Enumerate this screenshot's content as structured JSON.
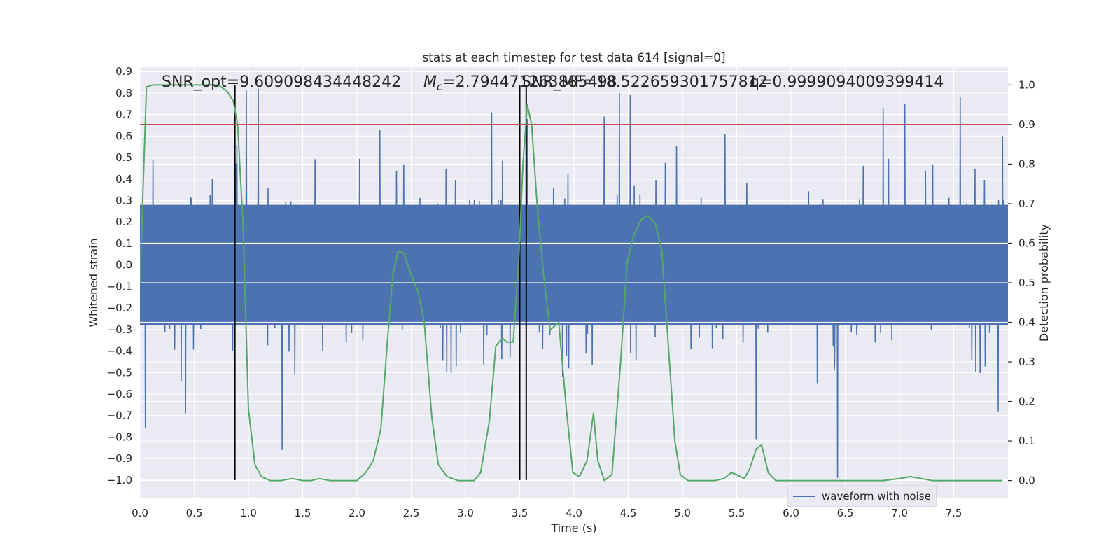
{
  "chart_data": {
    "type": "line",
    "title": "stats at each timestep for test data 614 [signal=0]",
    "xlabel": "Time (s)",
    "ylabel_left": "Whitened strain",
    "ylabel_right": "Detection probability",
    "xlim": [
      0,
      8
    ],
    "ylim_left": [
      -1.085,
      0.92
    ],
    "ylim_right": [
      -0.045,
      1.045
    ],
    "x_ticks": [
      0.0,
      0.5,
      1.0,
      1.5,
      2.0,
      2.5,
      3.0,
      3.5,
      4.0,
      4.5,
      5.0,
      5.5,
      6.0,
      6.5,
      7.0,
      7.5
    ],
    "x_tick_labels": [
      "0.0",
      "0.5",
      "1.0",
      "1.5",
      "2.0",
      "2.5",
      "3.0",
      "3.5",
      "4.0",
      "4.5",
      "5.0",
      "5.5",
      "6.0",
      "6.5",
      "7.0",
      "7.5"
    ],
    "y_left_ticks": [
      0.9,
      0.8,
      0.7,
      0.6,
      0.5,
      0.4,
      0.3,
      0.2,
      0.1,
      0.0,
      -0.1,
      -0.2,
      -0.3,
      -0.4,
      -0.5,
      -0.6,
      -0.7,
      -0.8,
      -0.9,
      -1.0
    ],
    "y_left_tick_labels": [
      "0.9",
      "0.8",
      "0.7",
      "0.6",
      "0.5",
      "0.4",
      "0.3",
      "0.2",
      "0.1",
      "0.0",
      "−0.1",
      "−0.2",
      "−0.3",
      "−0.4",
      "−0.5",
      "−0.6",
      "−0.7",
      "−0.8",
      "−0.9",
      "−1.0"
    ],
    "y_right_ticks": [
      1.0,
      0.9,
      0.8,
      0.7,
      0.6,
      0.5,
      0.4,
      0.3,
      0.2,
      0.1,
      0.0
    ],
    "y_right_tick_labels": [
      "1.0",
      "0.9",
      "0.8",
      "0.7",
      "0.6",
      "0.5",
      "0.4",
      "0.3",
      "0.2",
      "0.1",
      "0.0"
    ],
    "grid": true,
    "legend": {
      "placement": "lower-right",
      "entries": [
        "waveform with noise"
      ]
    },
    "annotations": {
      "snr_opt": "SNR_opt=9.609098434448242",
      "mc_symbol": "M",
      "mc_subscript": "c",
      "mc_value": "=2.794471263885498",
      "snr_mf": "SNR_MF=18.522659301757812",
      "q": "q=0.9999094009399414"
    },
    "colors": {
      "waveform": "#4c72b0",
      "probability": "#55a868",
      "threshold": "#c44e52",
      "markers": "#000000",
      "axes_bg": "#eaeaf2"
    },
    "series": [
      {
        "name": "waveform with noise",
        "axis": "left",
        "kind": "dense_noise",
        "core_band": [
          -0.28,
          0.28
        ],
        "peak_spikes": [
          {
            "x": 0.05,
            "y": -0.76
          },
          {
            "x": 0.12,
            "y": 0.49
          },
          {
            "x": 0.42,
            "y": -0.69
          },
          {
            "x": 0.87,
            "y": -0.69
          },
          {
            "x": 0.98,
            "y": 0.81
          },
          {
            "x": 1.09,
            "y": 0.82
          },
          {
            "x": 1.31,
            "y": -0.86
          },
          {
            "x": 2.21,
            "y": 0.63
          },
          {
            "x": 3.24,
            "y": 0.71
          },
          {
            "x": 3.57,
            "y": 0.68
          },
          {
            "x": 4.28,
            "y": 0.69
          },
          {
            "x": 4.42,
            "y": 0.8
          },
          {
            "x": 4.52,
            "y": 0.79
          },
          {
            "x": 5.68,
            "y": -0.81
          },
          {
            "x": 6.43,
            "y": -0.99
          },
          {
            "x": 6.85,
            "y": 0.73
          },
          {
            "x": 7.05,
            "y": 0.75
          },
          {
            "x": 7.56,
            "y": 0.78
          },
          {
            "x": 7.91,
            "y": -0.68
          },
          {
            "x": 7.95,
            "y": 0.6
          }
        ]
      },
      {
        "name": "",
        "axis": "right",
        "kind": "line",
        "points": [
          [
            0.0,
            0.5
          ],
          [
            0.06,
            0.995
          ],
          [
            0.12,
            1.0
          ],
          [
            0.5,
            1.0
          ],
          [
            0.72,
            1.0
          ],
          [
            0.8,
            0.985
          ],
          [
            0.86,
            0.96
          ],
          [
            0.9,
            0.9
          ],
          [
            0.95,
            0.65
          ],
          [
            1.0,
            0.18
          ],
          [
            1.06,
            0.04
          ],
          [
            1.12,
            0.01
          ],
          [
            1.2,
            0.0
          ],
          [
            1.3,
            0.0
          ],
          [
            1.4,
            0.005
          ],
          [
            1.5,
            0.0
          ],
          [
            1.58,
            0.0
          ],
          [
            1.65,
            0.005
          ],
          [
            1.75,
            0.0
          ],
          [
            1.9,
            0.0
          ],
          [
            2.0,
            0.0
          ],
          [
            2.08,
            0.02
          ],
          [
            2.15,
            0.05
          ],
          [
            2.22,
            0.13
          ],
          [
            2.28,
            0.35
          ],
          [
            2.33,
            0.52
          ],
          [
            2.38,
            0.58
          ],
          [
            2.43,
            0.575
          ],
          [
            2.5,
            0.52
          ],
          [
            2.56,
            0.48
          ],
          [
            2.62,
            0.4
          ],
          [
            2.69,
            0.16
          ],
          [
            2.75,
            0.04
          ],
          [
            2.83,
            0.01
          ],
          [
            2.93,
            0.0
          ],
          [
            3.0,
            0.0
          ],
          [
            3.08,
            0.0
          ],
          [
            3.14,
            0.02
          ],
          [
            3.22,
            0.15
          ],
          [
            3.28,
            0.34
          ],
          [
            3.34,
            0.36
          ],
          [
            3.38,
            0.35
          ],
          [
            3.44,
            0.35
          ],
          [
            3.49,
            0.55
          ],
          [
            3.53,
            0.8
          ],
          [
            3.57,
            0.95
          ],
          [
            3.61,
            0.9
          ],
          [
            3.66,
            0.7
          ],
          [
            3.72,
            0.52
          ],
          [
            3.78,
            0.38
          ],
          [
            3.86,
            0.4
          ],
          [
            3.93,
            0.18
          ],
          [
            3.99,
            0.02
          ],
          [
            4.05,
            0.01
          ],
          [
            4.12,
            0.05
          ],
          [
            4.18,
            0.17
          ],
          [
            4.22,
            0.05
          ],
          [
            4.28,
            0.0
          ],
          [
            4.35,
            0.015
          ],
          [
            4.43,
            0.3
          ],
          [
            4.49,
            0.55
          ],
          [
            4.55,
            0.62
          ],
          [
            4.62,
            0.66
          ],
          [
            4.68,
            0.67
          ],
          [
            4.75,
            0.65
          ],
          [
            4.81,
            0.58
          ],
          [
            4.86,
            0.38
          ],
          [
            4.93,
            0.1
          ],
          [
            4.98,
            0.015
          ],
          [
            5.05,
            0.0
          ],
          [
            5.15,
            0.0
          ],
          [
            5.3,
            0.0
          ],
          [
            5.38,
            0.005
          ],
          [
            5.45,
            0.02
          ],
          [
            5.5,
            0.015
          ],
          [
            5.57,
            0.005
          ],
          [
            5.62,
            0.03
          ],
          [
            5.68,
            0.08
          ],
          [
            5.73,
            0.09
          ],
          [
            5.79,
            0.02
          ],
          [
            5.86,
            0.0
          ],
          [
            6.0,
            0.0
          ],
          [
            6.2,
            0.0
          ],
          [
            6.6,
            0.0
          ],
          [
            6.85,
            0.0
          ],
          [
            7.0,
            0.005
          ],
          [
            7.1,
            0.01
          ],
          [
            7.3,
            0.0
          ],
          [
            7.6,
            0.0
          ],
          [
            7.95,
            0.0
          ]
        ]
      },
      {
        "name": "",
        "axis": "right",
        "kind": "hline",
        "y": 0.9
      }
    ],
    "vertical_markers_x": [
      0.875,
      3.5,
      3.56
    ],
    "vertical_markers_ymin_left": -1.0,
    "vertical_markers_ymax_right": 1.0
  }
}
